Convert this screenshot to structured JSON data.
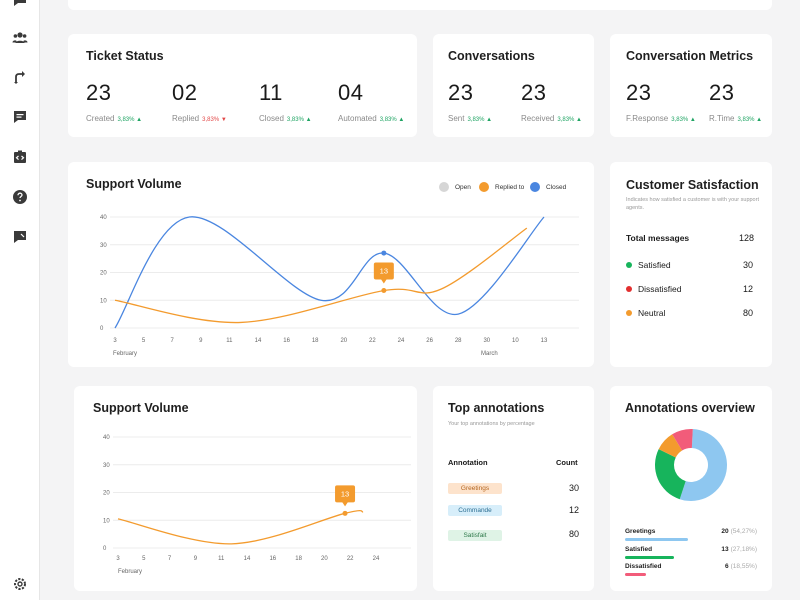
{
  "colors": {
    "open": "#d6d6d6",
    "replied": "#f39b2e",
    "closed": "#4a86e0",
    "satisfied": "#17b45c",
    "dissatisfied": "#e22f2f",
    "neutral": "#f39b2e",
    "up": "#1fa463",
    "down": "#e24848"
  },
  "sidebar": {
    "icons": [
      "chat-icon",
      "users-icon",
      "route-icon",
      "message-icon",
      "code-icon",
      "help-icon",
      "feedback-icon",
      "settings-icon"
    ]
  },
  "ticket_status": {
    "title": "Ticket Status",
    "stats": [
      {
        "value": "23",
        "label": "Created",
        "pct": "3,83%",
        "dir": "up"
      },
      {
        "value": "02",
        "label": "Replied",
        "pct": "3,83%",
        "dir": "down"
      },
      {
        "value": "11",
        "label": "Closed",
        "pct": "3,83%",
        "dir": "up"
      },
      {
        "value": "04",
        "label": "Automated",
        "pct": "3,83%",
        "dir": "up"
      }
    ]
  },
  "conversations": {
    "title": "Conversations",
    "stats": [
      {
        "value": "23",
        "label": "Sent",
        "pct": "3,83%",
        "dir": "up"
      },
      {
        "value": "23",
        "label": "Received",
        "pct": "3,83%",
        "dir": "up"
      }
    ]
  },
  "conversation_metrics": {
    "title": "Conversation Metrics",
    "stats": [
      {
        "value": "23",
        "label": "F.Response",
        "pct": "3,83%",
        "dir": "up"
      },
      {
        "value": "23",
        "label": "R.Time",
        "pct": "3,83%",
        "dir": "up"
      }
    ]
  },
  "support_volume_main": {
    "title": "Support Volume",
    "legend": [
      {
        "label": "Open",
        "color_key": "open"
      },
      {
        "label": "Replied to",
        "color_key": "replied"
      },
      {
        "label": "Closed",
        "color_key": "closed"
      }
    ],
    "tooltip": "13",
    "month_labels": [
      "February",
      "March"
    ]
  },
  "customer_satisfaction": {
    "title": "Customer Satisfaction",
    "description": "Indicates how satisfied a customer is with your support agents.",
    "total_label": "Total messages",
    "total_value": "128",
    "rows": [
      {
        "label": "Satisfied",
        "value": "30",
        "color_key": "satisfied"
      },
      {
        "label": "Dissatisfied",
        "value": "12",
        "color_key": "dissatisfied"
      },
      {
        "label": "Neutral",
        "value": "80",
        "color_key": "neutral"
      }
    ]
  },
  "support_volume_small": {
    "title": "Support Volume",
    "tooltip": "13",
    "month_label": "February"
  },
  "top_annotations": {
    "title": "Top annotations",
    "description": "Your top annotations by percentage",
    "col_annotation": "Annotation",
    "col_count": "Count",
    "rows": [
      {
        "label": "Greetings",
        "count": "30",
        "bg": "#fde3cc",
        "fg": "#b4651f"
      },
      {
        "label": "Commande",
        "count": "12",
        "bg": "#d7eefa",
        "fg": "#2d6f93"
      },
      {
        "label": "Satisfait",
        "count": "80",
        "bg": "#dff3e6",
        "fg": "#2f7a4b"
      }
    ]
  },
  "annotations_overview": {
    "title": "Annotations overview",
    "items": [
      {
        "label": "Greetings",
        "count": "20",
        "pct": "(54,27%)",
        "color": "#8ec7f0",
        "fraction": 0.9
      },
      {
        "label": "Satisfied",
        "count": "13",
        "pct": "(27,18%)",
        "color": "#17b45c",
        "fraction": 0.7
      },
      {
        "label": "Dissatisfied",
        "count": "6",
        "pct": "(18,55%)",
        "color": "#f25c7a",
        "fraction": 0.3
      }
    ],
    "donut": [
      {
        "label": "Greetings",
        "value": 54.27,
        "color": "#8ec7f0"
      },
      {
        "label": "Satisfied",
        "value": 27.18,
        "color": "#17b45c"
      },
      {
        "label": "Orange",
        "value": 9.0,
        "color": "#f39b2e"
      },
      {
        "label": "Dissatisfied",
        "value": 9.55,
        "color": "#f25c7a"
      }
    ]
  },
  "chart_data": [
    {
      "type": "line",
      "title": "Support Volume",
      "x_ticks": [
        "3",
        "5",
        "7",
        "9",
        "11",
        "14",
        "16",
        "18",
        "20",
        "22",
        "24",
        "26",
        "28",
        "30",
        "10",
        "13"
      ],
      "y_ticks": [
        "0",
        "10",
        "20",
        "30",
        "40"
      ],
      "ylim": [
        0,
        40
      ],
      "series": [
        {
          "name": "Closed",
          "color_key": "closed",
          "x_index": [
            0,
            2.6,
            7.2,
            9.4,
            12,
            15
          ],
          "values": [
            0,
            40,
            10,
            27,
            5,
            40
          ]
        },
        {
          "name": "Replied to",
          "color_key": "replied",
          "x_index": [
            0,
            4.4,
            9.4,
            11.4,
            14.4
          ],
          "values": [
            10,
            2,
            13.5,
            14,
            36
          ]
        }
      ]
    },
    {
      "type": "line",
      "title": "Support Volume",
      "x_ticks": [
        "3",
        "5",
        "7",
        "9",
        "11",
        "14",
        "16",
        "18",
        "20",
        "22",
        "24"
      ],
      "y_ticks": [
        "0",
        "10",
        "20",
        "30",
        "40"
      ],
      "ylim": [
        0,
        40
      ],
      "series": [
        {
          "name": "Replied to",
          "color_key": "replied",
          "x_index": [
            0,
            4.4,
            8.8,
            9.5
          ],
          "values": [
            10.5,
            1.5,
            12.5,
            13
          ]
        }
      ]
    }
  ]
}
